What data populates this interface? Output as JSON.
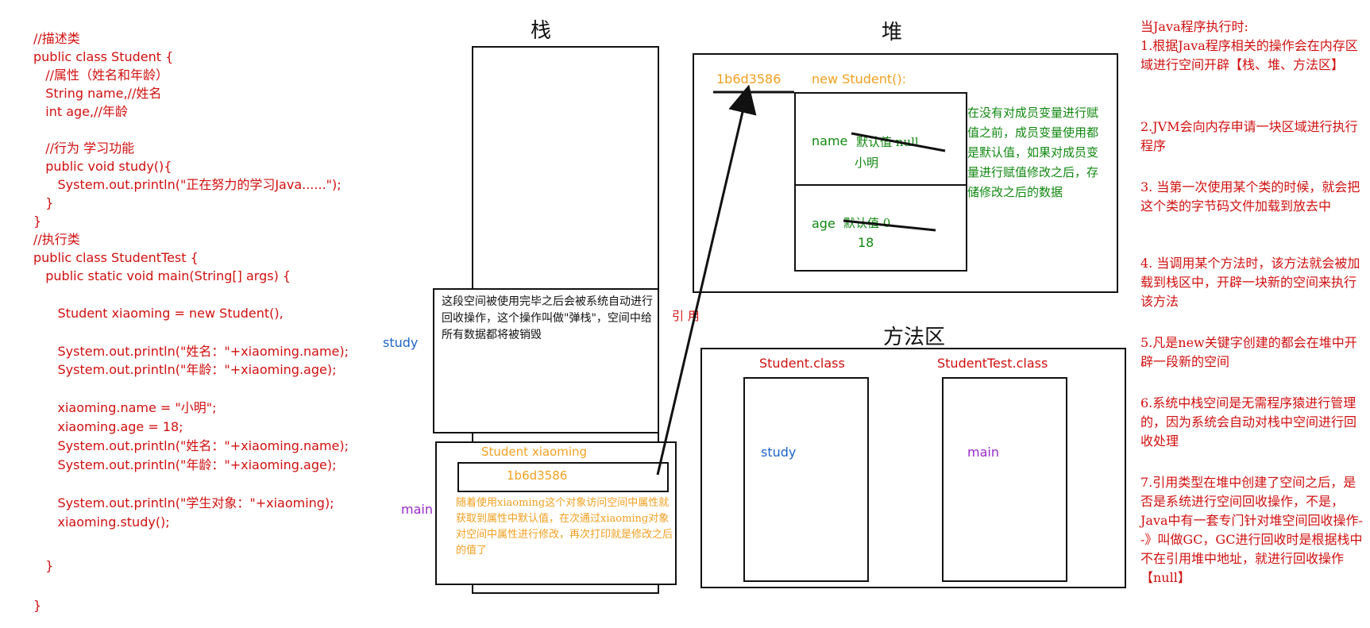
{
  "code": {
    "lines": [
      "//描述类",
      "public class Student {",
      "   //属性（姓名和年龄）",
      "   String name,//姓名",
      "   int age,//年龄",
      "",
      "   //行为 学习功能",
      "   public void study(){",
      "      System.out.println(\"正在努力的学习Java......\");",
      "   }",
      "}",
      "//执行类",
      "public class StudentTest {",
      "   public static void main(String[] args) {",
      "",
      "      Student xiaoming = new Student(),",
      "",
      "      System.out.println(\"姓名：\"+xiaoming.name);",
      "      System.out.println(\"年龄：\"+xiaoming.age);",
      "",
      "      xiaoming.name = \"小明\";",
      "      xiaoming.age = 18;",
      "      System.out.println(\"姓名：\"+xiaoming.name);",
      "      System.out.println(\"年龄：\"+xiaoming.age);",
      "",
      "      System.out.println(\"学生对象：\"+xiaoming);",
      "      xiaoming.study();",
      "",
      "   }",
      "}"
    ]
  },
  "stack": {
    "title": "栈",
    "study_label": "study",
    "main_label": "main",
    "study_frame_note": "这段空间被使用完毕之后会被系统自动进行回收操作，这个操作叫做\"弹栈\"，空间中给所有数据都将被销毁",
    "var_label": "Student xiaoming",
    "var_address": "1b6d3586",
    "main_frame_note": "随着使用xiaoming这个对象访问空间中属性就获取到属性中默认值，在次通过xiaoming对象对空间中属性进行修改，再次打印就是修改之后的值了"
  },
  "reference_label": "引      用",
  "heap": {
    "title": "堆",
    "address": "1b6d3586",
    "new_label": "new Student():",
    "name_field": "name",
    "name_default": "默认值 null",
    "name_value": "小明",
    "age_field": "age",
    "age_default": "默认值 0",
    "age_value": "18",
    "note": "在没有对成员变量进行赋值之前，成员变量使用都是默认值，如果对成员变量进行赋值修改之后，存储修改之后的数据"
  },
  "method_area": {
    "title": "方法区",
    "student_class": "Student.class",
    "student_method": "study",
    "test_class": "StudentTest.class",
    "test_method": "main"
  },
  "right_notes": {
    "intro": "当Java程序执行时:",
    "items": [
      "1.根据Java程序相关的操作会在内存区域进行空间开辟【栈、堆、方法区】",
      "2.JVM会向内存申请一块区域进行执行程序",
      "3. 当第一次使用某个类的时候，就会把这个类的字节码文件加载到放去中",
      "4. 当调用某个方法时，该方法就会被加载到栈区中，开辟一块新的空间来执行该方法",
      "5.凡是new关键字创建的都会在堆中开辟一段新的空间",
      "6.系统中栈空间是无需程序猿进行管理的，因为系统会自动对栈中空间进行回收处理",
      "7.引用类型在堆中创建了空间之后，是否是系统进行空间回收操作，不是，Java中有一套专门针对堆空间回收操作--》叫做GC，GC进行回收时是根据栈中不在引用堆中地址，就进行回收操作【null】"
    ]
  },
  "colors": {
    "code": "#d01010",
    "orange": "#f0a020",
    "green": "#118811",
    "blue": "#1e64c8",
    "purple": "#9a2ac8",
    "line": "#111111"
  }
}
